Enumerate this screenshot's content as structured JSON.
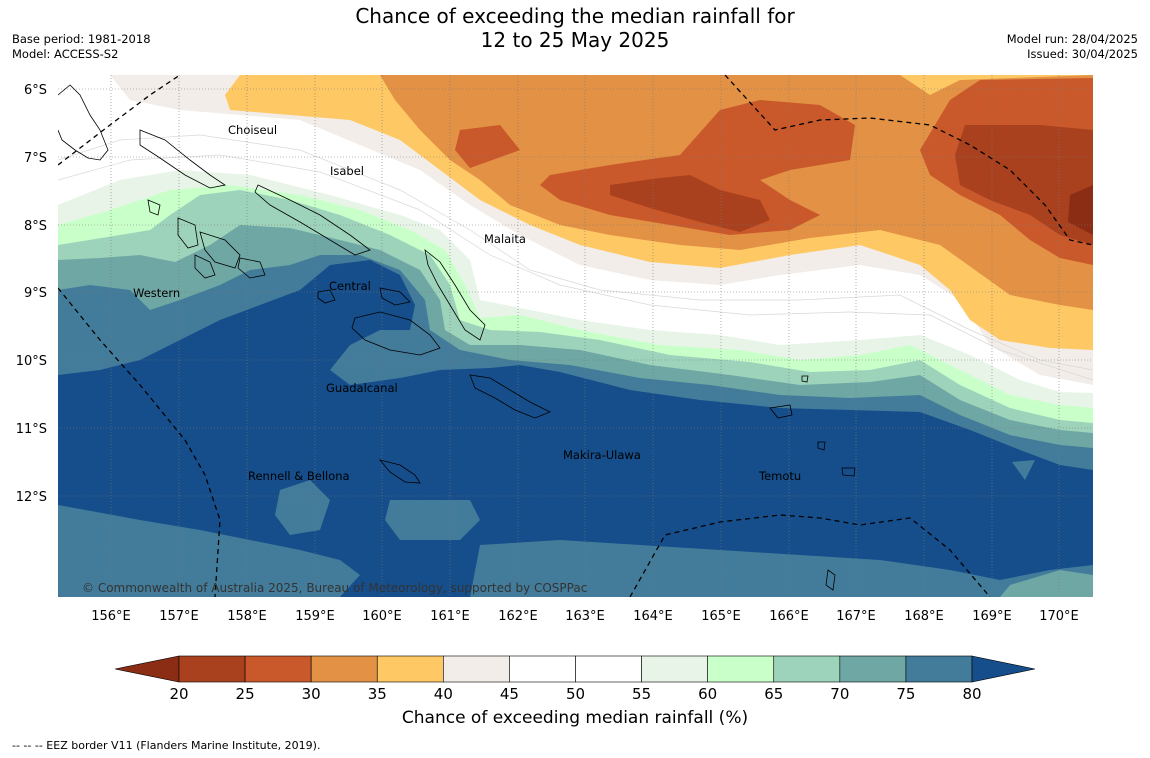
{
  "header": {
    "title_line1": "Chance of exceeding the median rainfall for",
    "title_line2": "12 to 25 May 2025",
    "base_period": "Base period: 1981-2018",
    "model": "Model: ACCESS-S2",
    "model_run": "Model run: 28/04/2025",
    "issued": "Issued: 30/04/2025"
  },
  "map": {
    "lat_labels": [
      "6°S",
      "7°S",
      "8°S",
      "9°S",
      "10°S",
      "11°S",
      "12°S"
    ],
    "lon_labels": [
      "156°E",
      "157°E",
      "158°E",
      "159°E",
      "160°E",
      "161°E",
      "162°E",
      "163°E",
      "164°E",
      "165°E",
      "166°E",
      "167°E",
      "168°E",
      "169°E",
      "170°E"
    ],
    "regions": {
      "choiseul": "Choiseul",
      "isabel": "Isabel",
      "malaita": "Malaita",
      "western": "Western",
      "central": "Central",
      "guadalcanal": "Guadalcanal",
      "makira": "Makira-Ulawa",
      "rennell": "Rennell & Bellona",
      "temotu": "Temotu"
    },
    "copyright": "© Commonwealth of Australia 2025, Bureau of Meteorology, supported by COSPPac"
  },
  "legend": {
    "title": "Chance of exceeding median rainfall (%)",
    "ticks": [
      "20",
      "25",
      "30",
      "35",
      "40",
      "45",
      "50",
      "55",
      "60",
      "65",
      "70",
      "75",
      "80"
    ],
    "colors": [
      "#a9411f",
      "#c9582b",
      "#e29145",
      "#fec964",
      "#f2ede8",
      "#ffffff",
      "#ffffff",
      "#e8f4e8",
      "#c9ffc9",
      "#9ed3bb",
      "#6fa7a4",
      "#437c9a",
      "#154e8b"
    ],
    "low_extend_color": "#8b2d15",
    "high_extend_color": "#154e8b"
  },
  "footnote": "--  --  -- EEZ border V11 (Flanders Marine Institute, 2019)."
}
